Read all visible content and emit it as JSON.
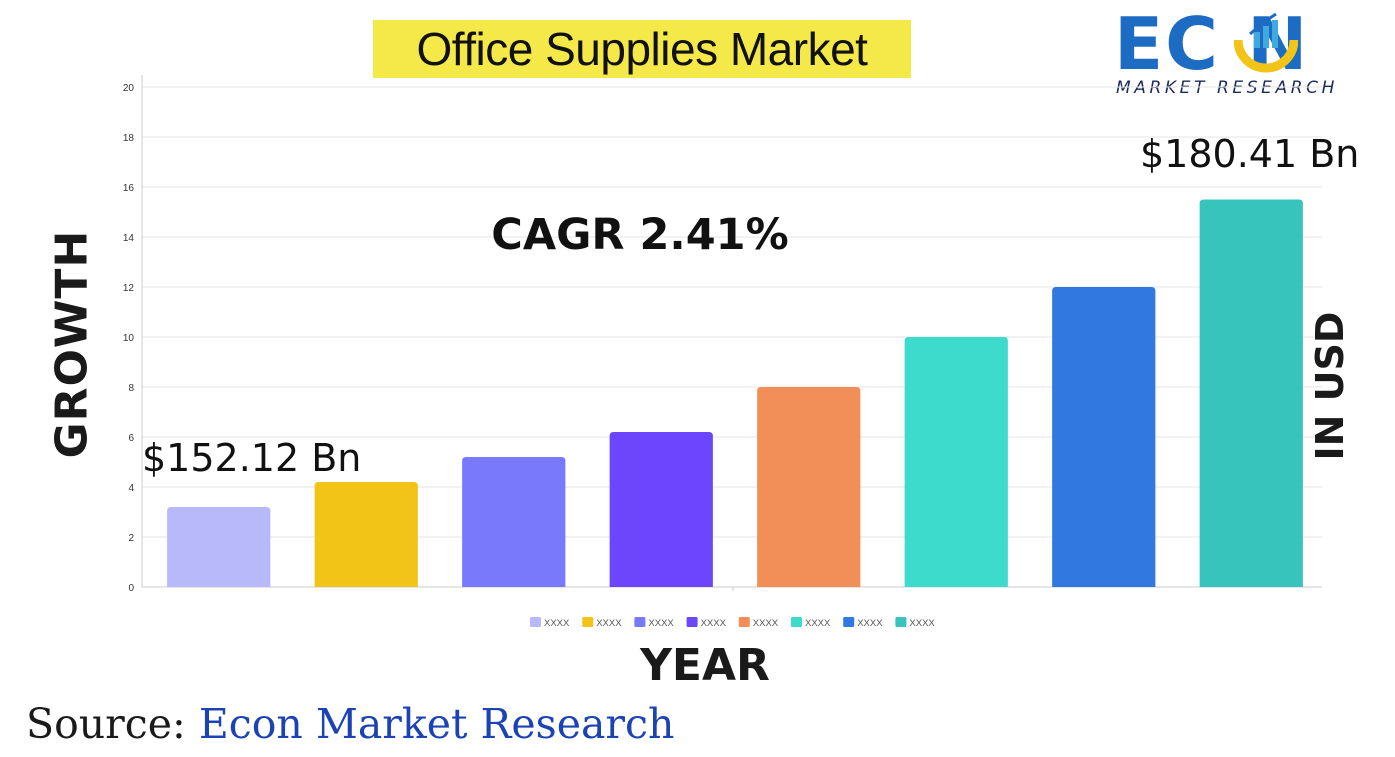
{
  "title": "Office Supplies Market",
  "logo": {
    "text": "EC N",
    "sub": "MARKET RESEARCH"
  },
  "y_axis_label": "GROWTH",
  "y2_axis_label": "IN USD",
  "x_axis_label": "YEAR",
  "cagr": "CAGR  2.41%",
  "annotation_start": "$152.12 Bn",
  "annotation_end": "$180.41 Bn",
  "source": {
    "label": "Source: ",
    "value": "Econ Market Research"
  },
  "chart_data": {
    "type": "bar",
    "categories": [
      "XXXX",
      "XXXX",
      "XXXX",
      "XXXX",
      "XXXX",
      "XXXX",
      "XXXX",
      "XXXX"
    ],
    "values": [
      3.2,
      4.2,
      5.2,
      6.2,
      8.0,
      10.0,
      12.0,
      15.5
    ],
    "colors": [
      "#b7b9fb",
      "#f2c418",
      "#7879fb",
      "#6b46fc",
      "#f28e58",
      "#3cdbcb",
      "#3178e0",
      "#36c4bc"
    ],
    "ylim": [
      0,
      20
    ],
    "yticks": [
      0,
      2,
      4,
      6,
      8,
      10,
      12,
      14,
      16,
      18,
      20
    ],
    "grid": true,
    "legend_position": "bottom"
  }
}
